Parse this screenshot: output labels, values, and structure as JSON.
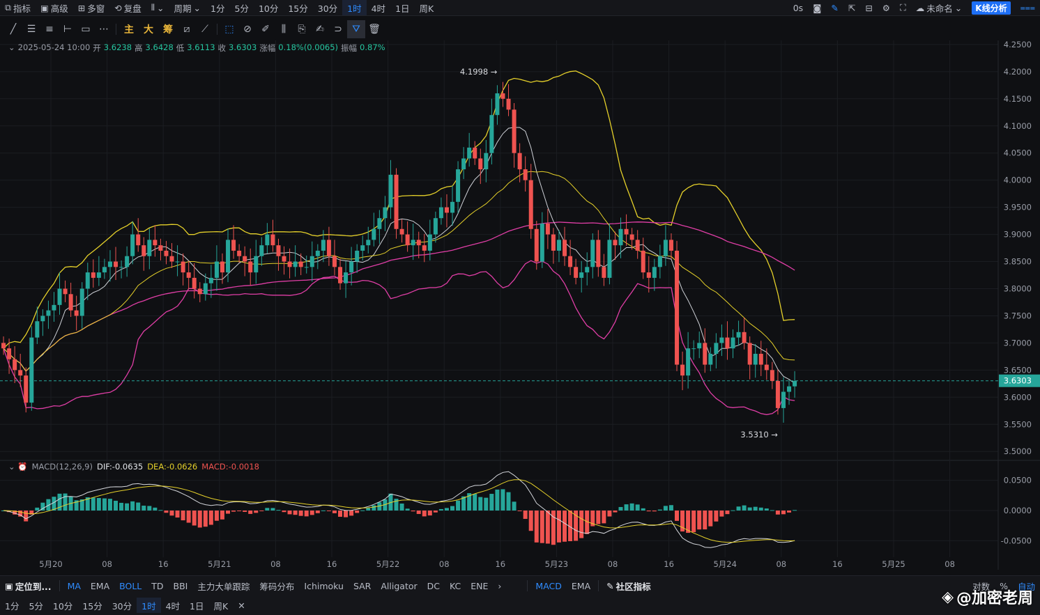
{
  "topbar": {
    "items": [
      "指标",
      "高级",
      "多窗",
      "复盘",
      "周期",
      "1分",
      "5分",
      "10分",
      "15分",
      "30分",
      "1时",
      "4时",
      "1日",
      "周K"
    ],
    "active": "1时",
    "right": {
      "zero": "0s",
      "name": "未命名",
      "kline": "K线分析"
    }
  },
  "toolbar": {
    "tools": [
      "trend-line-icon",
      "horizontal-lines-icon",
      "parallel-lines-icon",
      "ray-icon",
      "rectangle-icon",
      "more-icon"
    ],
    "zhu": "主",
    "da": "大",
    "chou": "筹",
    "tools2": [
      "measure-icon",
      "brush-icon",
      "ruler-icon",
      "pencil-icon",
      "candles-icon",
      "clipboard-icon",
      "note-icon",
      "magnet-icon",
      "filter-icon",
      "trash-icon"
    ]
  },
  "ohlc": {
    "datetime": "2025-05-24 10:00",
    "open_label": "开",
    "open": "3.6238",
    "high_label": "高",
    "high": "3.6428",
    "low_label": "低",
    "low": "3.6113",
    "close_label": "收",
    "close": "3.6303",
    "chg_label": "涨幅",
    "chg": "0.18%(0.0065)",
    "amp_label": "振幅",
    "amp": "0.87%"
  },
  "macd_header": {
    "name": "MACD(12,26,9)",
    "dif": "DIF:-0.0635",
    "dea": "DEA:-0.0626",
    "macd": "MACD:-0.0018"
  },
  "bottombar": {
    "locate": "定位到...",
    "indicators": [
      "MA",
      "EMA",
      "BOLL",
      "TD",
      "BBI",
      "主力大单跟踪",
      "筹码分布",
      "Ichimoku",
      "SAR",
      "Alligator",
      "DC",
      "KC",
      "ENE"
    ],
    "active_main": [
      "MA",
      "BOLL"
    ],
    "sub": [
      "MACD",
      "EMA"
    ],
    "active_sub": "MACD",
    "community": "社区指标",
    "right": [
      "对数",
      "%",
      "自动"
    ]
  },
  "periodbar": {
    "items": [
      "1分",
      "5分",
      "10分",
      "15分",
      "30分",
      "1时",
      "4时",
      "1日",
      "周K"
    ],
    "active": "1时"
  },
  "watermark": "@加密老周",
  "colors": {
    "up": "#26a69a",
    "down": "#ef5350",
    "bollMid": "#e03ea6",
    "bollBand": "#e6d12a",
    "ma1": "#cfd2d8",
    "ma2": "#e6d12a",
    "last": "#26a69a"
  },
  "chart_data": {
    "type": "candlestick",
    "interval": "1h",
    "x_ticks": [
      "5月20",
      "08",
      "16",
      "5月21",
      "08",
      "16",
      "5月22",
      "08",
      "16",
      "5月23",
      "08",
      "16",
      "5月24",
      "08",
      "16",
      "5月25",
      "08"
    ],
    "y_ticks": [
      "4.2500",
      "4.2000",
      "4.1500",
      "4.1000",
      "4.0500",
      "4.0000",
      "3.9500",
      "3.9000",
      "3.8500",
      "3.8000",
      "3.7500",
      "3.7000",
      "3.6500",
      "3.6000",
      "3.5500",
      "3.5000"
    ],
    "ylim": [
      3.49,
      4.255
    ],
    "last_price": "3.6303",
    "annotations": [
      {
        "label": "4.1998",
        "price": 4.1998
      },
      {
        "label": "3.5310",
        "price": 3.531
      }
    ],
    "closes": [
      3.69,
      3.67,
      3.65,
      3.64,
      3.59,
      3.71,
      3.74,
      3.75,
      3.76,
      3.77,
      3.8,
      3.79,
      3.76,
      3.75,
      3.8,
      3.83,
      3.82,
      3.83,
      3.84,
      3.85,
      3.84,
      3.84,
      3.86,
      3.9,
      3.88,
      3.86,
      3.89,
      3.88,
      3.87,
      3.86,
      3.85,
      3.85,
      3.83,
      3.82,
      3.8,
      3.79,
      3.81,
      3.82,
      3.85,
      3.83,
      3.89,
      3.87,
      3.86,
      3.85,
      3.83,
      3.86,
      3.88,
      3.9,
      3.88,
      3.86,
      3.85,
      3.84,
      3.85,
      3.84,
      3.84,
      3.86,
      3.87,
      3.89,
      3.86,
      3.84,
      3.81,
      3.83,
      3.85,
      3.87,
      3.88,
      3.89,
      3.91,
      3.93,
      3.95,
      4.01,
      3.91,
      3.9,
      3.88,
      3.89,
      3.88,
      3.87,
      3.9,
      3.93,
      3.95,
      3.94,
      3.96,
      4.02,
      4.04,
      4.06,
      4.04,
      4.02,
      4.05,
      4.12,
      4.16,
      4.15,
      4.13,
      4.05,
      4.02,
      4.0,
      3.91,
      3.85,
      3.92,
      3.9,
      3.87,
      3.89,
      3.86,
      3.84,
      3.82,
      3.83,
      3.84,
      3.89,
      3.84,
      3.82,
      3.89,
      3.88,
      3.91,
      3.9,
      3.89,
      3.87,
      3.83,
      3.82,
      3.84,
      3.86,
      3.89,
      3.87,
      3.66,
      3.64,
      3.69,
      3.69,
      3.7,
      3.66,
      3.68,
      3.7,
      3.71,
      3.69,
      3.71,
      3.72,
      3.7,
      3.66,
      3.68,
      3.66,
      3.65,
      3.63,
      3.58,
      3.61,
      3.62,
      3.63
    ],
    "macd_ylim": [
      -0.075,
      0.075
    ],
    "macd_ticks": [
      "0.0500",
      "0.0000",
      "-0.0500"
    ]
  }
}
